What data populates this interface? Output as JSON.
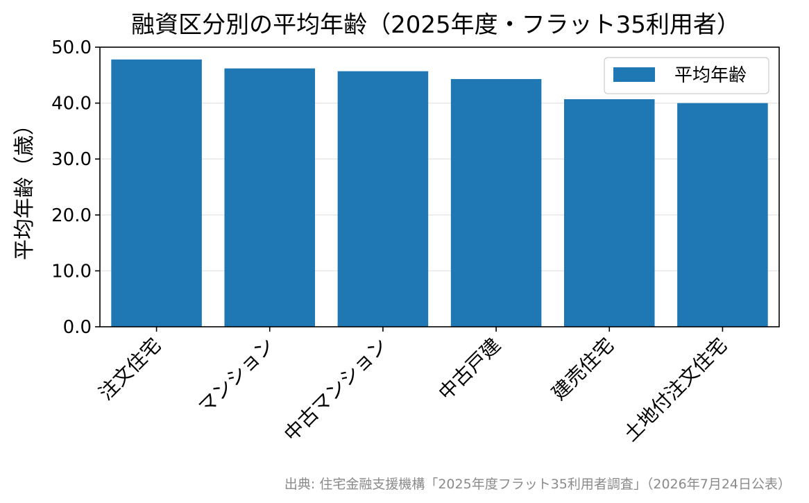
{
  "chart_data": {
    "type": "bar",
    "title": "融資区分別の平均年齢（2025年度・フラット35利用者）",
    "ylabel": "平均年齢（歳）",
    "xlabel": "",
    "categories": [
      "注文住宅",
      "マンション",
      "中古マンション",
      "中古戸建",
      "建売住宅",
      "土地付注文住宅"
    ],
    "series": [
      {
        "name": "平均年齢",
        "values": [
          47.8,
          46.2,
          45.7,
          44.3,
          40.7,
          40.0
        ]
      }
    ],
    "ylim": [
      0,
      50
    ],
    "yticks": [
      "0.0",
      "10.0",
      "20.0",
      "30.0",
      "40.0",
      "50.0"
    ],
    "grid": "y",
    "legend": "top-right",
    "bar_color": "#1f77b4",
    "grid_color": "#e6e6e6",
    "source": "出典: 住宅金融支援機構「2025年度フラット35利用者調査」（2026年7月24日公表）"
  }
}
